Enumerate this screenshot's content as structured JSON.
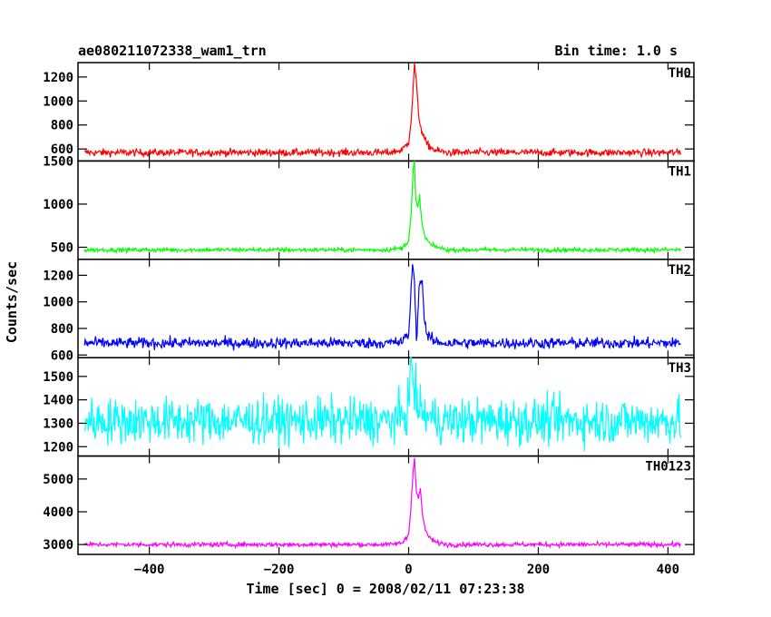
{
  "header": {
    "title": "ae080211072338_wam1_trn",
    "bin_time": "Bin time: 1.0 s"
  },
  "chart_data": {
    "type": "line",
    "xlabel": "Time [sec] 0 = 2008/02/11 07:23:38",
    "ylabel": "Counts/sec",
    "xlim": [
      -510,
      440
    ],
    "xticks": [
      -400,
      -200,
      0,
      200,
      400
    ],
    "x_data_range": [
      -500,
      420
    ],
    "panels": [
      {
        "name": "TH0",
        "color": "#ff0000",
        "ylim": [
          500,
          1320
        ],
        "yticks": [
          600,
          800,
          1000,
          1200
        ],
        "baseline": 570,
        "noise": 22,
        "peak": [
          [
            -30,
            570
          ],
          [
            -10,
            590
          ],
          [
            0,
            660
          ],
          [
            4,
            850
          ],
          [
            7,
            1100
          ],
          [
            9,
            1320
          ],
          [
            12,
            1150
          ],
          [
            15,
            900
          ],
          [
            18,
            800
          ],
          [
            22,
            720
          ],
          [
            28,
            640
          ],
          [
            40,
            590
          ],
          [
            60,
            570
          ]
        ]
      },
      {
        "name": "TH1",
        "color": "#00ff00",
        "ylim": [
          360,
          1500
        ],
        "yticks": [
          500,
          1000,
          1500
        ],
        "baseline": 470,
        "noise": 18,
        "peak": [
          [
            -30,
            470
          ],
          [
            -10,
            490
          ],
          [
            0,
            580
          ],
          [
            4,
            900
          ],
          [
            7,
            1400
          ],
          [
            9,
            1500
          ],
          [
            11,
            1050
          ],
          [
            14,
            950
          ],
          [
            17,
            1100
          ],
          [
            20,
            800
          ],
          [
            25,
            620
          ],
          [
            35,
            520
          ],
          [
            60,
            470
          ]
        ]
      },
      {
        "name": "TH2",
        "color": "#0000ff",
        "ylim": [
          580,
          1320
        ],
        "yticks": [
          600,
          800,
          1000,
          1200
        ],
        "baseline": 690,
        "noise": 30,
        "peak": [
          [
            -30,
            690
          ],
          [
            -10,
            700
          ],
          [
            0,
            760
          ],
          [
            3,
            1000
          ],
          [
            6,
            1300
          ],
          [
            9,
            1150
          ],
          [
            12,
            700
          ],
          [
            16,
            1100
          ],
          [
            20,
            1200
          ],
          [
            24,
            900
          ],
          [
            28,
            750
          ],
          [
            40,
            700
          ],
          [
            60,
            690
          ]
        ]
      },
      {
        "name": "TH3",
        "color": "#00ffff",
        "ylim": [
          1160,
          1580
        ],
        "yticks": [
          1200,
          1300,
          1400,
          1500
        ],
        "baseline": 1310,
        "noise": 70,
        "peak": [
          [
            -30,
            1310
          ],
          [
            -5,
            1330
          ],
          [
            0,
            1400
          ],
          [
            4,
            1580
          ],
          [
            8,
            1450
          ],
          [
            14,
            1380
          ],
          [
            22,
            1340
          ],
          [
            40,
            1315
          ],
          [
            60,
            1310
          ]
        ]
      },
      {
        "name": "TH0123",
        "color": "#ff00ff",
        "ylim": [
          2700,
          5700
        ],
        "yticks": [
          3000,
          4000,
          5000
        ],
        "baseline": 3000,
        "noise": 50,
        "peak": [
          [
            -30,
            3000
          ],
          [
            -10,
            3050
          ],
          [
            0,
            3300
          ],
          [
            4,
            4300
          ],
          [
            7,
            5300
          ],
          [
            9,
            5600
          ],
          [
            12,
            4600
          ],
          [
            15,
            4400
          ],
          [
            18,
            4700
          ],
          [
            22,
            3800
          ],
          [
            28,
            3300
          ],
          [
            40,
            3080
          ],
          [
            60,
            3000
          ]
        ]
      }
    ]
  }
}
